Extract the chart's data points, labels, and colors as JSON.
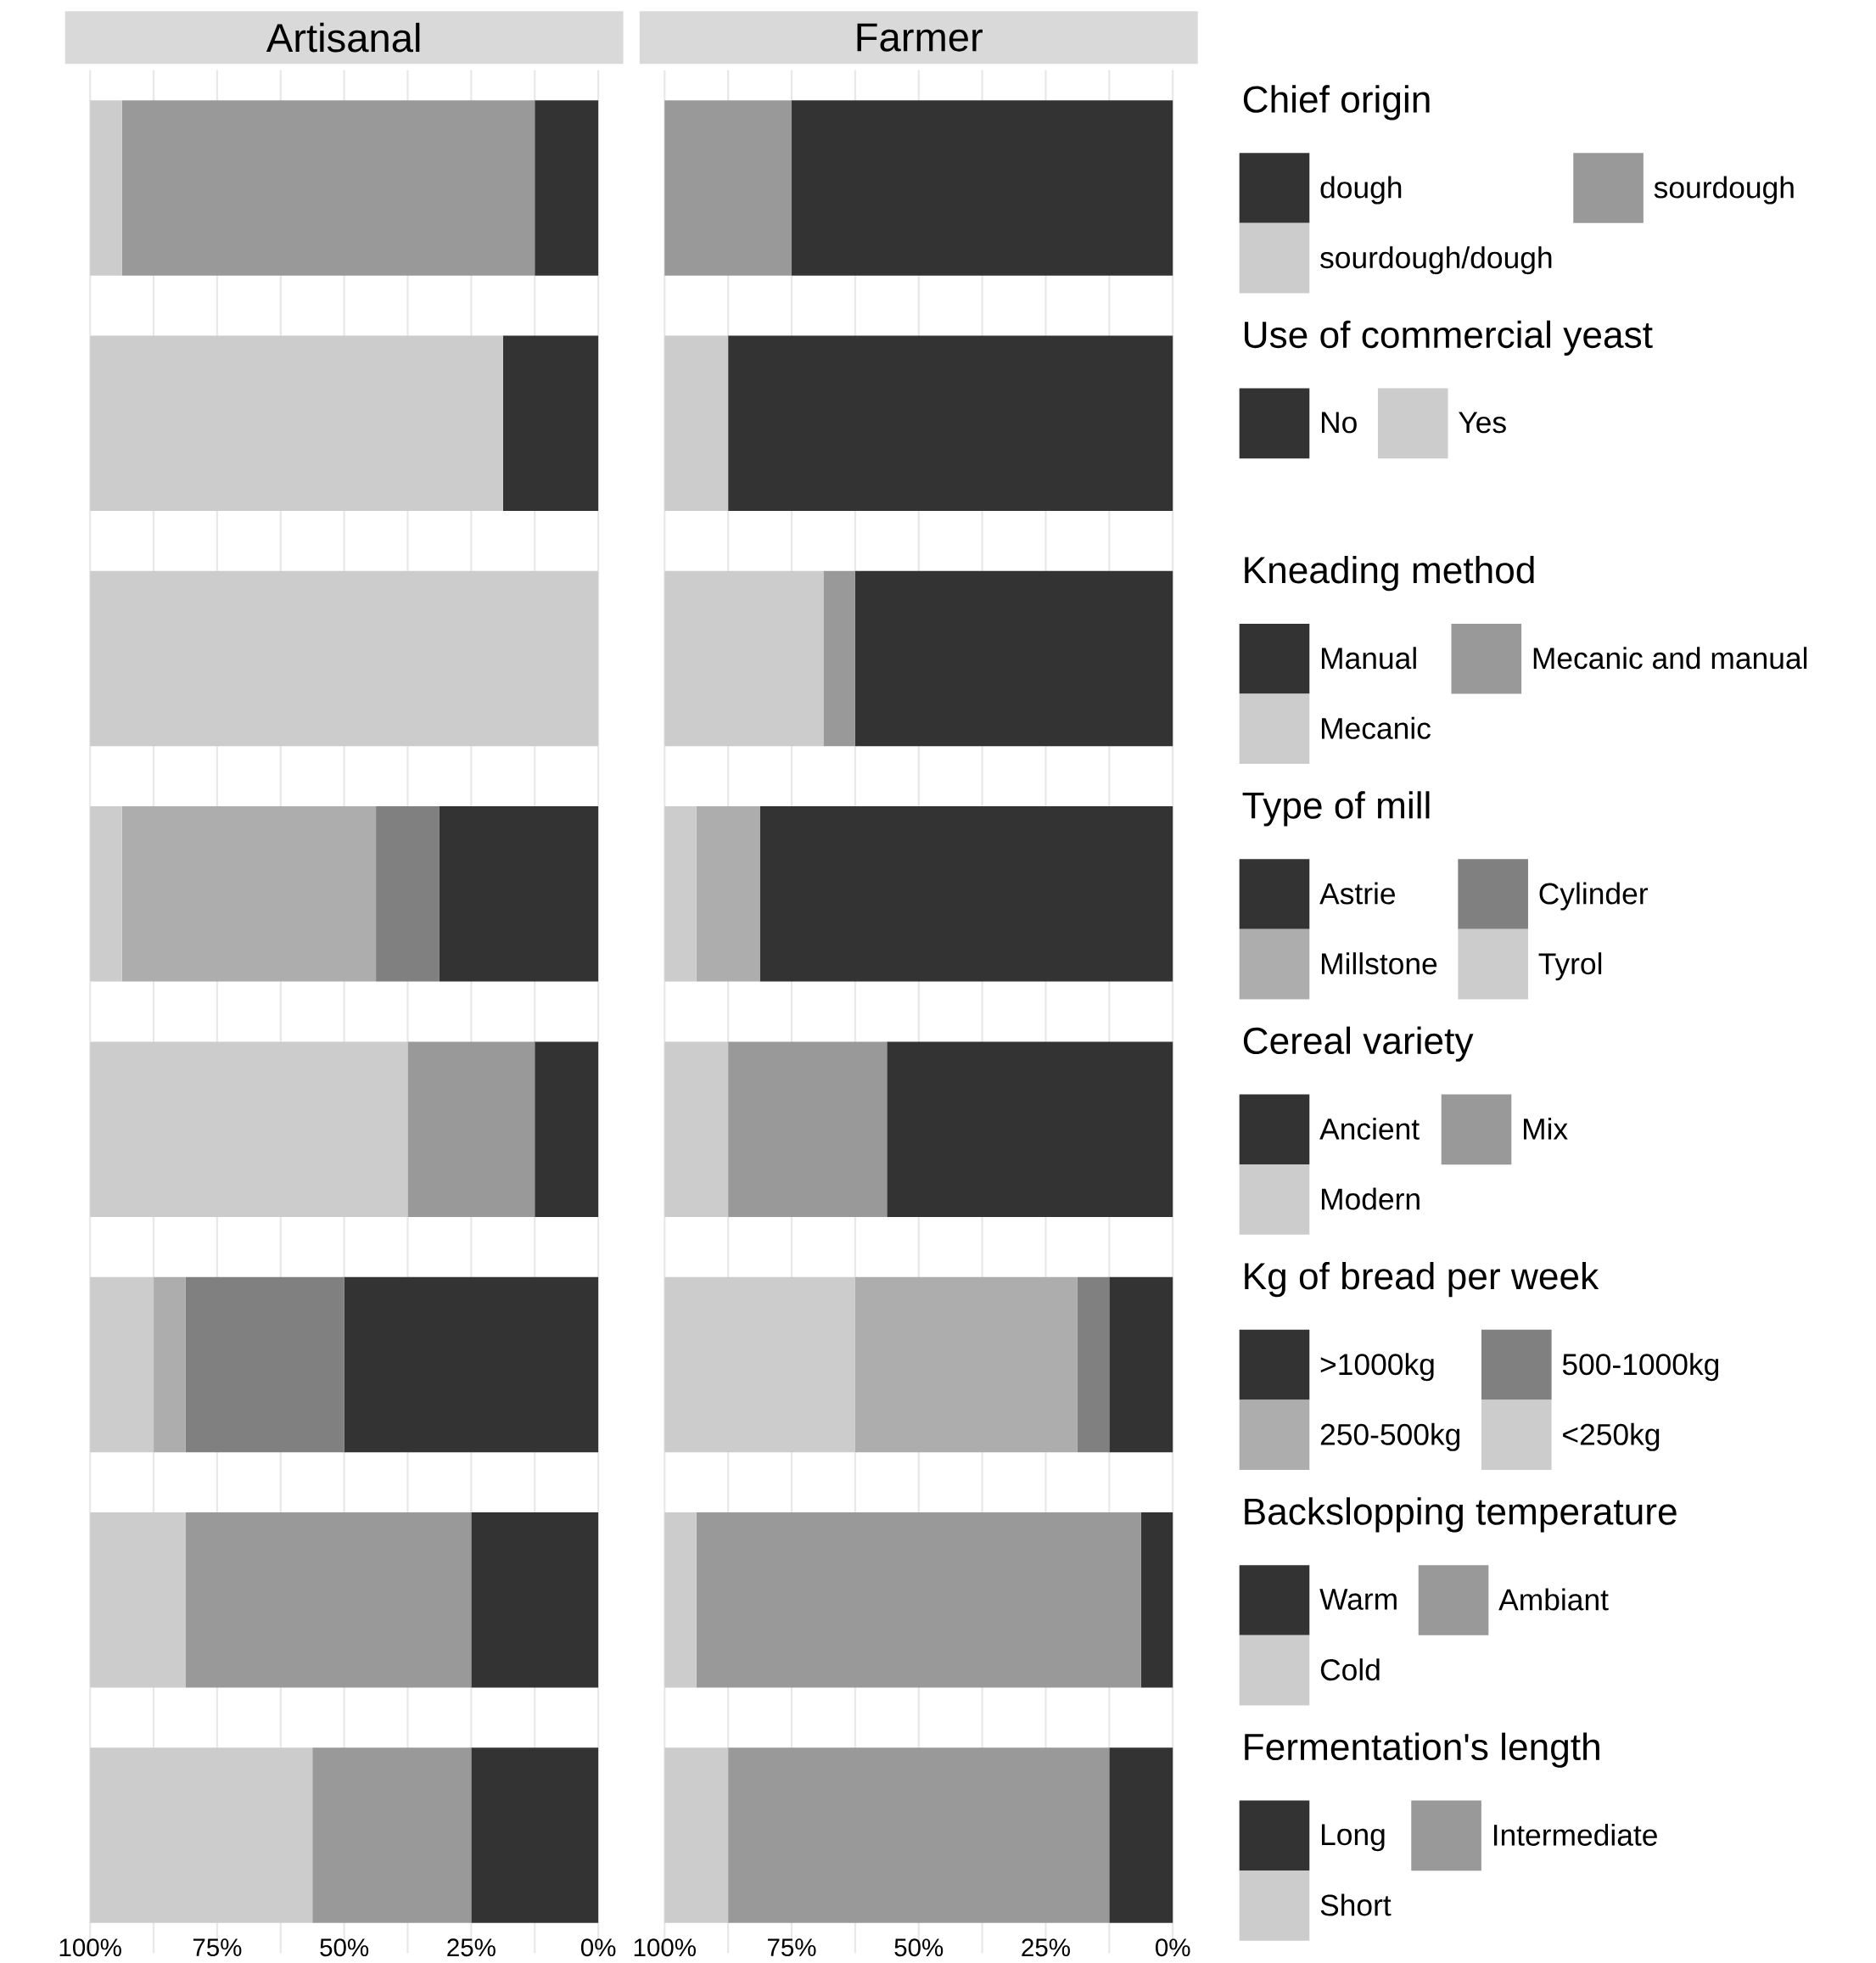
{
  "chart_data": [
    {
      "type": "bar",
      "orientation": "horizontal",
      "stacked": true,
      "title": "Artisanal",
      "categories": [
        null,
        null,
        null,
        null,
        null,
        null,
        null,
        null
      ],
      "xlim": [
        100,
        0
      ],
      "xticks": [
        {
          "value": 100,
          "label": "100%"
        },
        {
          "value": 87.5,
          "label": null
        },
        {
          "value": 75,
          "label": "75%"
        },
        {
          "value": 62.5,
          "label": null
        },
        {
          "value": 50,
          "label": "50%"
        },
        {
          "value": 37.5,
          "label": null
        },
        {
          "value": 25,
          "label": "25%"
        },
        {
          "value": 12.5,
          "label": null
        },
        {
          "value": 0,
          "label": "0%"
        }
      ],
      "grid": "x",
      "tick_labels": "x",
      "series": [
        {
          "color": "#333333",
          "values": [
            12.5,
            null,
            null,
            null,
            null,
            null,
            null,
            null
          ]
        },
        {
          "color": "#999999",
          "values": [
            81.25,
            null,
            null,
            null,
            null,
            null,
            null,
            null
          ]
        },
        {
          "color": "#cccccc",
          "values": [
            6.25,
            null,
            null,
            null,
            null,
            null,
            null,
            null
          ]
        },
        {
          "color": "#333333",
          "values": [
            null,
            18.75,
            null,
            null,
            null,
            null,
            null,
            null
          ]
        },
        {
          "color": "#cccccc",
          "values": [
            null,
            81.25,
            null,
            null,
            null,
            null,
            null,
            null
          ]
        },
        {
          "color": "#333333",
          "values": [
            null,
            null,
            0,
            null,
            null,
            null,
            null,
            null
          ]
        },
        {
          "color": "#999999",
          "values": [
            null,
            null,
            0,
            null,
            null,
            null,
            null,
            null
          ]
        },
        {
          "color": "#cccccc",
          "values": [
            null,
            null,
            100,
            null,
            null,
            null,
            null,
            null
          ]
        },
        {
          "color": "#333333",
          "values": [
            null,
            null,
            null,
            31.25,
            null,
            null,
            null,
            null
          ]
        },
        {
          "color": "#808080",
          "values": [
            null,
            null,
            null,
            12.5,
            null,
            null,
            null,
            null
          ]
        },
        {
          "color": "#adadad",
          "values": [
            null,
            null,
            null,
            50,
            null,
            null,
            null,
            null
          ]
        },
        {
          "color": "#cccccc",
          "values": [
            null,
            null,
            null,
            6.25,
            null,
            null,
            null,
            null
          ]
        },
        {
          "color": "#333333",
          "values": [
            null,
            null,
            null,
            null,
            12.5,
            null,
            null,
            null
          ]
        },
        {
          "color": "#999999",
          "values": [
            null,
            null,
            null,
            null,
            25,
            null,
            null,
            null
          ]
        },
        {
          "color": "#cccccc",
          "values": [
            null,
            null,
            null,
            null,
            62.5,
            null,
            null,
            null
          ]
        },
        {
          "color": "#333333",
          "values": [
            null,
            null,
            null,
            null,
            null,
            50,
            null,
            null
          ]
        },
        {
          "color": "#808080",
          "values": [
            null,
            null,
            null,
            null,
            null,
            31.25,
            null,
            null
          ]
        },
        {
          "color": "#adadad",
          "values": [
            null,
            null,
            null,
            null,
            null,
            6.25,
            null,
            null
          ]
        },
        {
          "color": "#cccccc",
          "values": [
            null,
            null,
            null,
            null,
            null,
            12.5,
            null,
            null
          ]
        },
        {
          "color": "#333333",
          "values": [
            null,
            null,
            null,
            null,
            null,
            null,
            25,
            null
          ]
        },
        {
          "color": "#999999",
          "values": [
            null,
            null,
            null,
            null,
            null,
            null,
            56.25,
            null
          ]
        },
        {
          "color": "#cccccc",
          "values": [
            null,
            null,
            null,
            null,
            null,
            null,
            18.75,
            null
          ]
        },
        {
          "color": "#333333",
          "values": [
            null,
            null,
            null,
            null,
            null,
            null,
            null,
            25
          ]
        },
        {
          "color": "#999999",
          "values": [
            null,
            null,
            null,
            null,
            null,
            null,
            null,
            31.25
          ]
        },
        {
          "color": "#cccccc",
          "values": [
            null,
            null,
            null,
            null,
            null,
            null,
            null,
            43.75
          ]
        }
      ]
    },
    {
      "type": "bar",
      "orientation": "horizontal",
      "stacked": true,
      "title": "Farmer",
      "categories": [
        null,
        null,
        null,
        null,
        null,
        null,
        null,
        null
      ],
      "xlim": [
        100,
        0
      ],
      "xticks": [
        {
          "value": 100,
          "label": "100%"
        },
        {
          "value": 87.5,
          "label": null
        },
        {
          "value": 75,
          "label": "75%"
        },
        {
          "value": 62.5,
          "label": null
        },
        {
          "value": 50,
          "label": "50%"
        },
        {
          "value": 37.5,
          "label": null
        },
        {
          "value": 25,
          "label": "25%"
        },
        {
          "value": 12.5,
          "label": null
        },
        {
          "value": 0,
          "label": "0%"
        }
      ],
      "grid": "x",
      "tick_labels": "x",
      "legend": "right",
      "annotations": [
        "Chief origin",
        "Use of commercial yeast",
        "Kneading method",
        "Type of mill",
        "Cereal variety",
        "Kg of bread per week",
        "Backslopping temperature",
        "Fermentation's length"
      ],
      "series": [
        {
          "name": "dough",
          "color": "#333333",
          "values": [
            75,
            null,
            null,
            null,
            null,
            null,
            null,
            null
          ]
        },
        {
          "name": "sourdough",
          "color": "#999999",
          "values": [
            25,
            null,
            null,
            null,
            null,
            null,
            null,
            null
          ]
        },
        {
          "name": "sourdough/dough",
          "color": "#cccccc",
          "values": [
            0,
            null,
            null,
            null,
            null,
            null,
            null,
            null
          ]
        },
        {
          "name": "No",
          "color": "#333333",
          "values": [
            null,
            87.5,
            null,
            null,
            null,
            null,
            null,
            null
          ]
        },
        {
          "name": "Yes",
          "color": "#cccccc",
          "values": [
            null,
            12.5,
            null,
            null,
            null,
            null,
            null,
            null
          ]
        },
        {
          "name": "Manual",
          "color": "#333333",
          "values": [
            null,
            null,
            62.5,
            null,
            null,
            null,
            null,
            null
          ]
        },
        {
          "name": "Mecanic and manual",
          "color": "#999999",
          "values": [
            null,
            null,
            6.25,
            null,
            null,
            null,
            null,
            null
          ]
        },
        {
          "name": "Mecanic",
          "color": "#cccccc",
          "values": [
            null,
            null,
            31.25,
            null,
            null,
            null,
            null,
            null
          ]
        },
        {
          "name": "Astrie",
          "color": "#333333",
          "values": [
            null,
            null,
            null,
            81.25,
            null,
            null,
            null,
            null
          ]
        },
        {
          "name": "Cylinder",
          "color": "#808080",
          "values": [
            null,
            null,
            null,
            0,
            null,
            null,
            null,
            null
          ]
        },
        {
          "name": "Millstone",
          "color": "#adadad",
          "values": [
            null,
            null,
            null,
            12.5,
            null,
            null,
            null,
            null
          ]
        },
        {
          "name": "Tyrol",
          "color": "#cccccc",
          "values": [
            null,
            null,
            null,
            6.25,
            null,
            null,
            null,
            null
          ]
        },
        {
          "name": "Ancient",
          "color": "#333333",
          "values": [
            null,
            null,
            null,
            null,
            56.25,
            null,
            null,
            null
          ]
        },
        {
          "name": "Mix",
          "color": "#999999",
          "values": [
            null,
            null,
            null,
            null,
            31.25,
            null,
            null,
            null
          ]
        },
        {
          "name": "Modern",
          "color": "#cccccc",
          "values": [
            null,
            null,
            null,
            null,
            12.5,
            null,
            null,
            null
          ]
        },
        {
          "name": ">1000kg",
          "color": "#333333",
          "values": [
            null,
            null,
            null,
            null,
            null,
            12.5,
            null,
            null
          ]
        },
        {
          "name": "500-1000kg",
          "color": "#808080",
          "values": [
            null,
            null,
            null,
            null,
            null,
            6.25,
            null,
            null
          ]
        },
        {
          "name": "250-500kg",
          "color": "#adadad",
          "values": [
            null,
            null,
            null,
            null,
            null,
            43.75,
            null,
            null
          ]
        },
        {
          "name": "<250kg",
          "color": "#cccccc",
          "values": [
            null,
            null,
            null,
            null,
            null,
            37.5,
            null,
            null
          ]
        },
        {
          "name": "Warm",
          "color": "#333333",
          "values": [
            null,
            null,
            null,
            null,
            null,
            null,
            6.25,
            null
          ]
        },
        {
          "name": "Ambiant",
          "color": "#999999",
          "values": [
            null,
            null,
            null,
            null,
            null,
            null,
            87.5,
            null
          ]
        },
        {
          "name": "Cold",
          "color": "#cccccc",
          "values": [
            null,
            null,
            null,
            null,
            null,
            null,
            6.25,
            null
          ]
        },
        {
          "name": "Long",
          "color": "#333333",
          "values": [
            null,
            null,
            null,
            null,
            null,
            null,
            null,
            12.5
          ]
        },
        {
          "name": "Intermediate",
          "color": "#999999",
          "values": [
            null,
            null,
            null,
            null,
            null,
            null,
            null,
            75
          ]
        },
        {
          "name": "Short",
          "color": "#cccccc",
          "values": [
            null,
            null,
            null,
            null,
            null,
            null,
            null,
            12.5
          ]
        }
      ]
    }
  ]
}
